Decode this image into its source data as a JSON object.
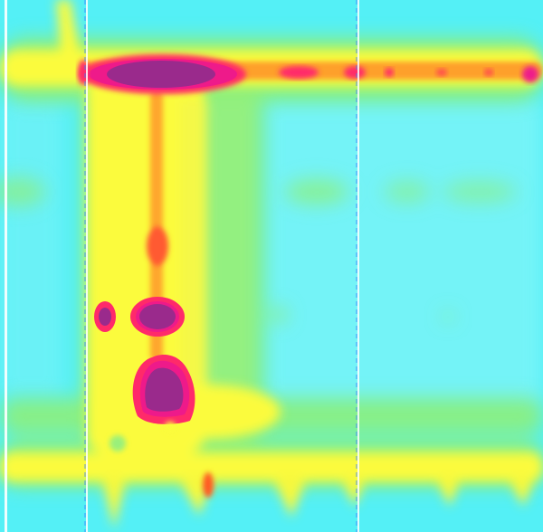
{
  "image": {
    "kind": "thermal-heatmap",
    "content_text": [],
    "palette": {
      "background_cyan": "#54f0f6",
      "light_cyan": "#7af4f8",
      "green": "#8ef07a",
      "yellow": "#fbfb3c",
      "orange": "#ff8a28",
      "red_pink": "#ff2a6a",
      "magenta": "#ee1a8a",
      "purple": "#9a2a8c",
      "white": "#ffffff",
      "marker_blue": "#3a7cff"
    },
    "features": [
      "top-horizontal-hot-band",
      "left-vertical-hot-column",
      "center-hotspots",
      "bottom-horizontal-band",
      "vertical-dashed-markers"
    ]
  }
}
